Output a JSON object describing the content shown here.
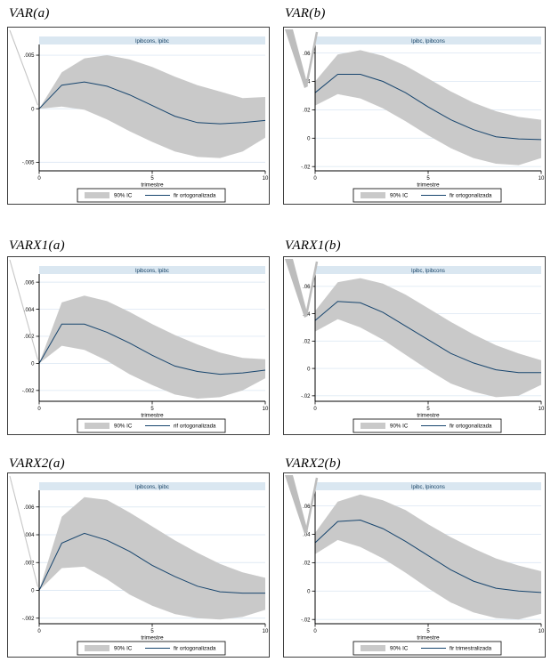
{
  "colors": {
    "band": "#c9c9c9",
    "irf_line": "#17456e",
    "plot_title_bg": "#dae7f1",
    "plot_title_text": "#123f63",
    "gridline": "#dfeaf4",
    "axis": "#000000",
    "wedge_artifact": "#bdbdbd"
  },
  "chart_data": [
    {
      "type": "line",
      "heading": "VAR(a)",
      "plot_title": "lpibcons, lpibc",
      "xlabel": "trimestre",
      "x": [
        0,
        1,
        2,
        3,
        4,
        5,
        6,
        7,
        8,
        9,
        10
      ],
      "xticks": [
        0,
        5,
        10
      ],
      "ylim": [
        -0.0058,
        0.006
      ],
      "yticks": [
        {
          "value": 0.005,
          "label": ".005"
        },
        {
          "value": 0,
          "label": "0"
        },
        {
          "value": -0.005,
          "label": "-.005"
        }
      ],
      "series": [
        {
          "name": "90% IC",
          "kind": "band",
          "upper": [
            0,
            0.0034,
            0.0047,
            0.005,
            0.0046,
            0.0039,
            0.003,
            0.0022,
            0.0016,
            0.001,
            0.0011
          ],
          "lower": [
            0,
            0.0002,
            -0.0001,
            -0.001,
            -0.0021,
            -0.0031,
            -0.004,
            -0.0045,
            -0.0046,
            -0.004,
            -0.0027
          ]
        },
        {
          "name": "fir ortogonalizada",
          "kind": "line",
          "values": [
            0,
            0.0022,
            0.0025,
            0.0021,
            0.0013,
            0.0003,
            -0.0007,
            -0.0013,
            -0.0014,
            -0.0013,
            -0.0011
          ]
        }
      ],
      "legend": {
        "band_label": "90% IC",
        "line_label": "fir ortogonalizada",
        "position": "bottom"
      },
      "wedge": "line"
    },
    {
      "type": "line",
      "heading": "VAR(b)",
      "plot_title": "lpibc, lpibcons",
      "xlabel": "trimestre",
      "x": [
        0,
        1,
        2,
        3,
        4,
        5,
        6,
        7,
        8,
        9,
        10
      ],
      "xticks": [
        0,
        5,
        10
      ],
      "ylim": [
        -0.023,
        0.066
      ],
      "yticks": [
        {
          "value": 0.06,
          "label": ".06"
        },
        {
          "value": 0.04,
          "label": ".04"
        },
        {
          "value": 0.02,
          "label": ".02"
        },
        {
          "value": 0,
          "label": "0"
        },
        {
          "value": -0.02,
          "label": "-.02"
        }
      ],
      "series": [
        {
          "name": "90% IC",
          "kind": "band",
          "upper": [
            0.04,
            0.059,
            0.062,
            0.058,
            0.051,
            0.042,
            0.033,
            0.025,
            0.019,
            0.015,
            0.013
          ],
          "lower": [
            0.023,
            0.031,
            0.028,
            0.021,
            0.012,
            0.002,
            -0.007,
            -0.014,
            -0.018,
            -0.019,
            -0.014
          ]
        },
        {
          "name": "fir ortogonalizada",
          "kind": "line",
          "values": [
            0.032,
            0.045,
            0.045,
            0.04,
            0.032,
            0.022,
            0.013,
            0.006,
            0.001,
            -0.0005,
            -0.001
          ]
        }
      ],
      "legend": {
        "band_label": "90% IC",
        "line_label": "fir ortogonalizada",
        "position": "bottom"
      },
      "wedge": "v"
    },
    {
      "type": "line",
      "heading": "VARX1(a)",
      "plot_title": "lpibcons, lpibc",
      "xlabel": "trimestre",
      "x": [
        0,
        1,
        2,
        3,
        4,
        5,
        6,
        7,
        8,
        9,
        10
      ],
      "xticks": [
        0,
        5,
        10
      ],
      "ylim": [
        -0.0028,
        0.0066
      ],
      "yticks": [
        {
          "value": 0.006,
          "label": ".006"
        },
        {
          "value": 0.004,
          "label": ".004"
        },
        {
          "value": 0.002,
          "label": ".002"
        },
        {
          "value": 0,
          "label": "0"
        },
        {
          "value": -0.002,
          "label": "-.002"
        }
      ],
      "series": [
        {
          "name": "90% IC",
          "kind": "band",
          "upper": [
            0,
            0.0045,
            0.005,
            0.0046,
            0.0038,
            0.0029,
            0.0021,
            0.0014,
            0.0008,
            0.0004,
            0.0003
          ],
          "lower": [
            0,
            0.0013,
            0.001,
            0.0002,
            -0.0008,
            -0.0016,
            -0.0023,
            -0.0026,
            -0.0025,
            -0.002,
            -0.0011
          ]
        },
        {
          "name": "rif ortogonalizada",
          "kind": "line",
          "values": [
            0,
            0.0029,
            0.0029,
            0.0023,
            0.0015,
            0.0006,
            -0.0002,
            -0.0006,
            -0.0008,
            -0.0007,
            -0.0005
          ]
        }
      ],
      "legend": {
        "band_label": "90% IC",
        "line_label": "rif ortogonalizada",
        "position": "bottom"
      },
      "wedge": "line"
    },
    {
      "type": "line",
      "heading": "VARX1(b)",
      "plot_title": "lpibc, lpibcons",
      "xlabel": "trimestre",
      "x": [
        0,
        1,
        2,
        3,
        4,
        5,
        6,
        7,
        8,
        9,
        10
      ],
      "xticks": [
        0,
        5,
        10
      ],
      "ylim": [
        -0.024,
        0.069
      ],
      "yticks": [
        {
          "value": 0.06,
          "label": ".06"
        },
        {
          "value": 0.04,
          "label": ".04"
        },
        {
          "value": 0.02,
          "label": ".02"
        },
        {
          "value": 0,
          "label": "0"
        },
        {
          "value": -0.02,
          "label": "-.02"
        }
      ],
      "series": [
        {
          "name": "90% IC",
          "kind": "band",
          "upper": [
            0.042,
            0.063,
            0.066,
            0.062,
            0.054,
            0.044,
            0.034,
            0.025,
            0.017,
            0.011,
            0.006
          ],
          "lower": [
            0.027,
            0.036,
            0.03,
            0.021,
            0.01,
            -0.001,
            -0.011,
            -0.017,
            -0.021,
            -0.02,
            -0.012
          ]
        },
        {
          "name": "fir ortogonalizada",
          "kind": "line",
          "values": [
            0.035,
            0.049,
            0.048,
            0.041,
            0.031,
            0.021,
            0.011,
            0.004,
            -0.001,
            -0.003,
            -0.003
          ]
        }
      ],
      "legend": {
        "band_label": "90% IC",
        "line_label": "fir ortogonalizada",
        "position": "bottom"
      },
      "wedge": "v"
    },
    {
      "type": "line",
      "heading": "VARX2(a)",
      "plot_title": "lpibcons, lpibc",
      "xlabel": "trimestre",
      "x": [
        0,
        1,
        2,
        3,
        4,
        5,
        6,
        7,
        8,
        9,
        10
      ],
      "xticks": [
        0,
        5,
        10
      ],
      "ylim": [
        -0.0024,
        0.0072
      ],
      "yticks": [
        {
          "value": 0.006,
          "label": ".006"
        },
        {
          "value": 0.004,
          "label": ".004"
        },
        {
          "value": 0.002,
          "label": ".002"
        },
        {
          "value": 0,
          "label": "0"
        },
        {
          "value": -0.002,
          "label": "-.002"
        }
      ],
      "series": [
        {
          "name": "90% IC",
          "kind": "band",
          "upper": [
            0,
            0.0053,
            0.0067,
            0.0065,
            0.0056,
            0.0046,
            0.0036,
            0.0027,
            0.0019,
            0.0013,
            0.0009
          ],
          "lower": [
            0,
            0.0016,
            0.0017,
            0.0008,
            -0.0003,
            -0.0011,
            -0.0017,
            -0.002,
            -0.0021,
            -0.0019,
            -0.0014
          ]
        },
        {
          "name": "fir ortogonalizada",
          "kind": "line",
          "values": [
            0,
            0.0034,
            0.0041,
            0.0036,
            0.0028,
            0.0018,
            0.001,
            0.0003,
            -0.0001,
            -0.0002,
            -0.0002
          ]
        }
      ],
      "legend": {
        "band_label": "90% IC",
        "line_label": "fir ortogonalizada",
        "position": "bottom"
      },
      "wedge": "line"
    },
    {
      "type": "line",
      "heading": "VARX2(b)",
      "plot_title": "lpibc, lpincons",
      "xlabel": "trimestre",
      "x": [
        0,
        1,
        2,
        3,
        4,
        5,
        6,
        7,
        8,
        9,
        10
      ],
      "xticks": [
        0,
        5,
        10
      ],
      "ylim": [
        -0.023,
        0.071
      ],
      "yticks": [
        {
          "value": 0.06,
          "label": ".06"
        },
        {
          "value": 0.04,
          "label": ".04"
        },
        {
          "value": 0.02,
          "label": ".02"
        },
        {
          "value": 0,
          "label": "0"
        },
        {
          "value": -0.02,
          "label": "-.02"
        }
      ],
      "series": [
        {
          "name": "90% IC",
          "kind": "band",
          "upper": [
            0.041,
            0.063,
            0.068,
            0.064,
            0.057,
            0.047,
            0.038,
            0.03,
            0.023,
            0.018,
            0.014
          ],
          "lower": [
            0.026,
            0.036,
            0.031,
            0.023,
            0.013,
            0.002,
            -0.008,
            -0.015,
            -0.019,
            -0.02,
            -0.016
          ]
        },
        {
          "name": "fir trimestralizada",
          "kind": "line",
          "values": [
            0.034,
            0.049,
            0.05,
            0.044,
            0.035,
            0.025,
            0.015,
            0.007,
            0.002,
            0,
            -0.001
          ]
        }
      ],
      "legend": {
        "band_label": "90% IC",
        "line_label": "fir trimestralizada",
        "position": "bottom"
      },
      "wedge": "v"
    }
  ]
}
